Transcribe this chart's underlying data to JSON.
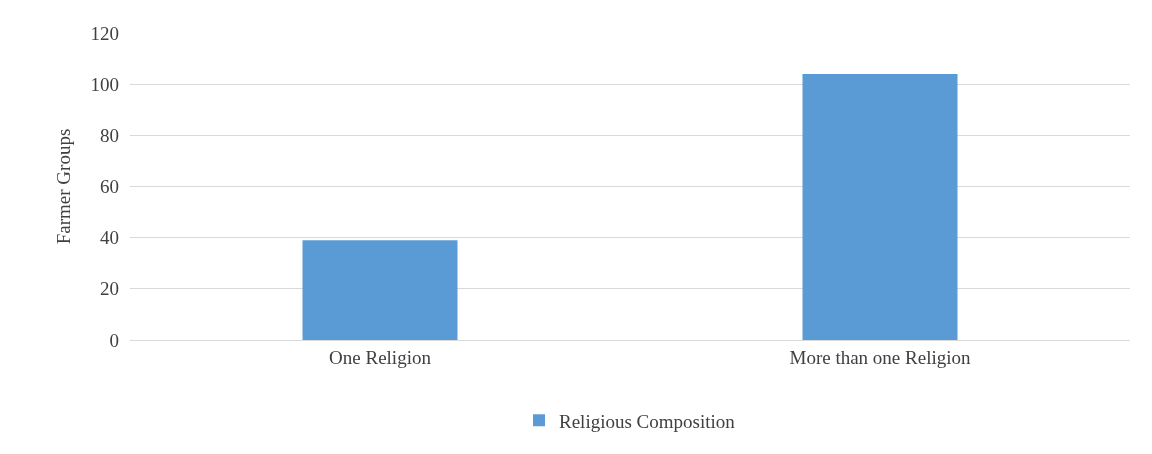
{
  "chart_data": {
    "type": "bar",
    "ylabel": "Farmer Groups",
    "categories": [
      "One Religion",
      "More than one Religion"
    ],
    "series": [
      {
        "name": "Religious Composition",
        "color": "#5b9bd5",
        "values": [
          39,
          104
        ]
      }
    ],
    "ylim": [
      0,
      120
    ],
    "yticks": [
      0,
      20,
      40,
      60,
      80,
      100,
      120
    ],
    "grid": "y",
    "legend": "bottom"
  }
}
